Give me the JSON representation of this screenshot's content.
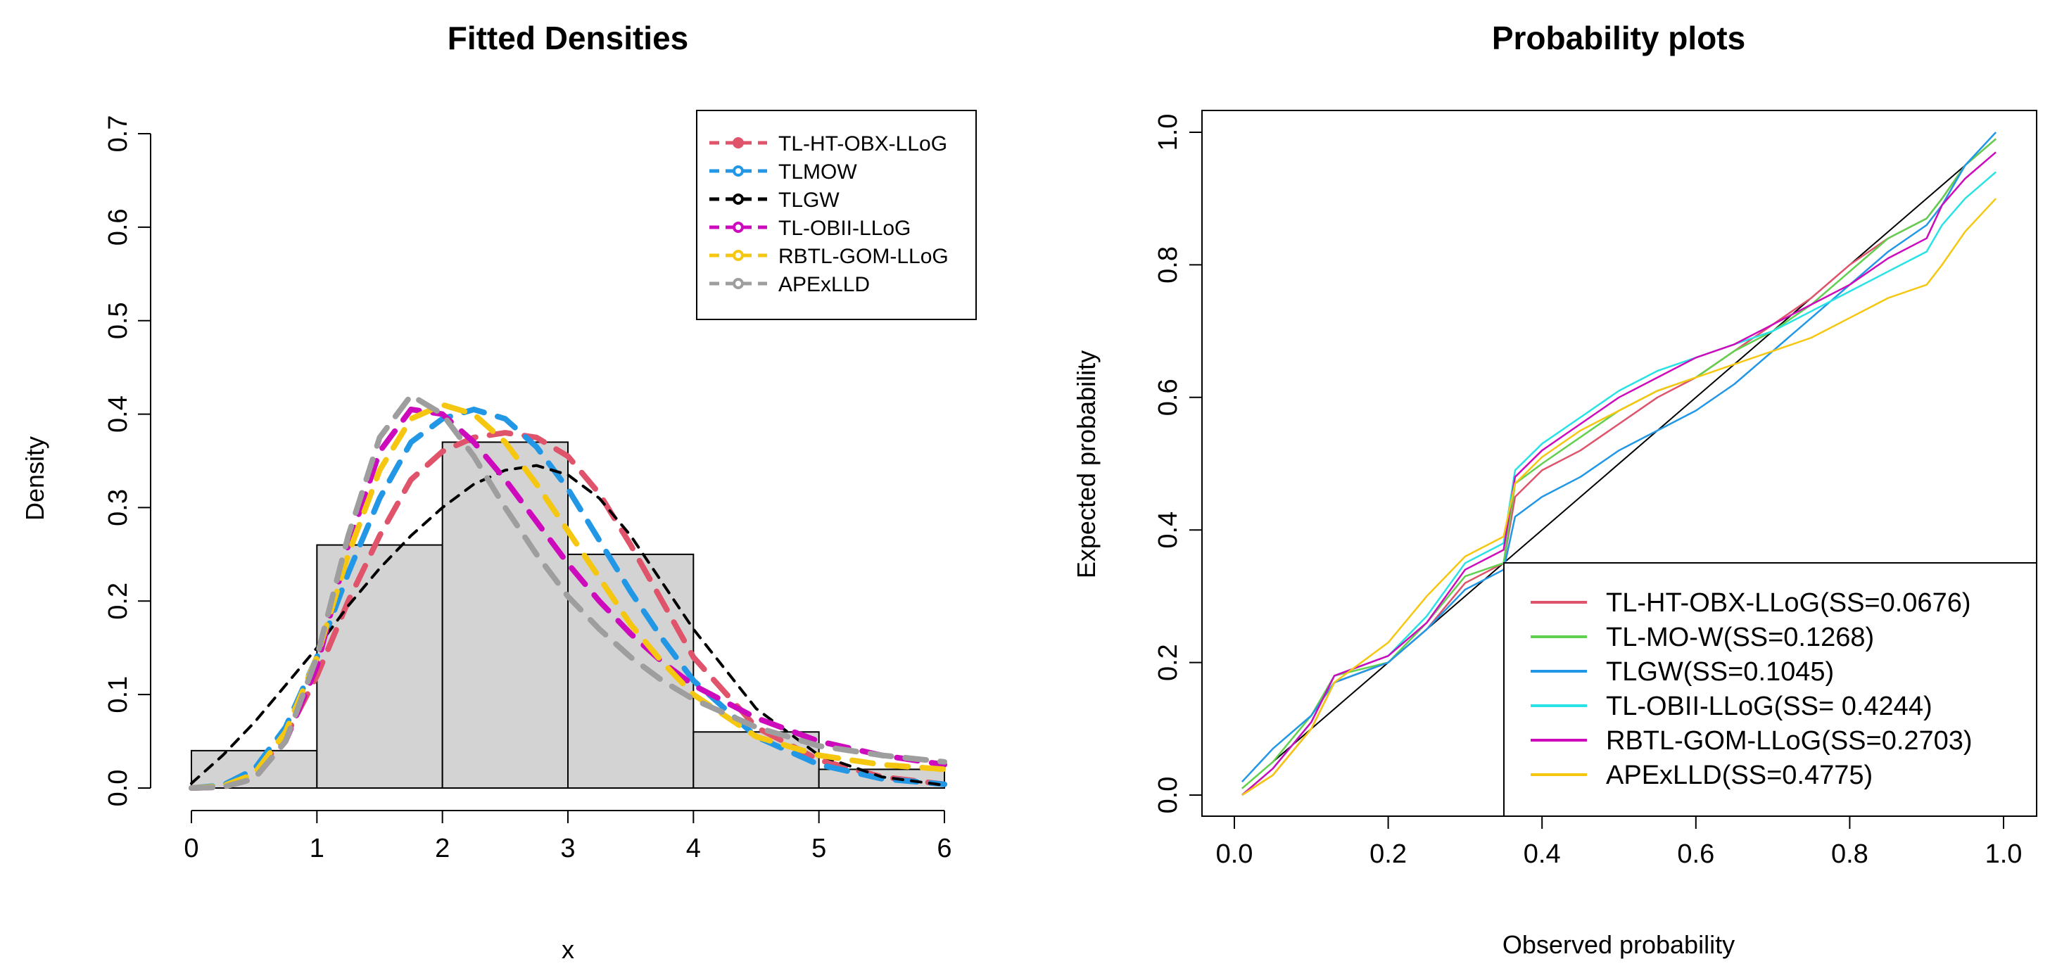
{
  "chart_data": [
    {
      "type": "histogram+line",
      "title": "Fitted Densities",
      "xlabel": "x",
      "ylabel": "Density",
      "xlim": [
        0,
        6
      ],
      "ylim": [
        0,
        0.7
      ],
      "xticks": [
        "0",
        "1",
        "2",
        "3",
        "4",
        "5",
        "6"
      ],
      "yticks": [
        "0.0",
        "0.1",
        "0.2",
        "0.3",
        "0.4",
        "0.5",
        "0.6",
        "0.7"
      ],
      "histogram": {
        "bins": [
          [
            0,
            1
          ],
          [
            1,
            2
          ],
          [
            2,
            3
          ],
          [
            3,
            4
          ],
          [
            4,
            5
          ],
          [
            5,
            6
          ]
        ],
        "values": [
          0.04,
          0.26,
          0.37,
          0.25,
          0.06,
          0.02
        ],
        "fill": "#d3d3d3"
      },
      "legend_position": "top-right",
      "series": [
        {
          "name": "TL-HT-OBX-LLoG",
          "color": "#df536b",
          "x": [
            0,
            0.25,
            0.5,
            0.75,
            1,
            1.25,
            1.5,
            1.75,
            2,
            2.25,
            2.5,
            2.75,
            3,
            3.25,
            3.5,
            3.75,
            4,
            4.5,
            5,
            5.5,
            6
          ],
          "y": [
            0,
            0.002,
            0.015,
            0.055,
            0.12,
            0.2,
            0.27,
            0.33,
            0.36,
            0.375,
            0.38,
            0.375,
            0.355,
            0.315,
            0.26,
            0.2,
            0.14,
            0.065,
            0.03,
            0.012,
            0.004
          ]
        },
        {
          "name": "TLMOW",
          "color": "#2297e6",
          "x": [
            0,
            0.25,
            0.5,
            0.75,
            1,
            1.25,
            1.5,
            1.75,
            2,
            2.25,
            2.5,
            2.75,
            3,
            3.25,
            3.5,
            3.75,
            4,
            4.5,
            5,
            5.5,
            6
          ],
          "y": [
            0,
            0.003,
            0.02,
            0.065,
            0.14,
            0.23,
            0.31,
            0.37,
            0.395,
            0.405,
            0.395,
            0.365,
            0.32,
            0.265,
            0.21,
            0.16,
            0.115,
            0.055,
            0.025,
            0.01,
            0.004
          ]
        },
        {
          "name": "TLGW",
          "color": "#000000",
          "x": [
            0,
            0.25,
            0.5,
            0.75,
            1,
            1.25,
            1.5,
            1.75,
            2,
            2.25,
            2.5,
            2.75,
            3,
            3.25,
            3.5,
            3.75,
            4,
            4.5,
            5,
            5.5,
            6
          ],
          "y": [
            0.005,
            0.035,
            0.07,
            0.11,
            0.15,
            0.195,
            0.235,
            0.27,
            0.3,
            0.325,
            0.34,
            0.345,
            0.335,
            0.31,
            0.27,
            0.22,
            0.17,
            0.085,
            0.035,
            0.012,
            0.003
          ]
        },
        {
          "name": "TL-OBII-LLoG",
          "color": "#cd0bbc",
          "x": [
            0,
            0.25,
            0.5,
            0.75,
            1,
            1.25,
            1.5,
            1.75,
            2,
            2.25,
            2.5,
            2.75,
            3,
            3.25,
            3.5,
            3.75,
            4,
            4.5,
            5,
            5.5,
            6
          ],
          "y": [
            0,
            0.001,
            0.01,
            0.05,
            0.13,
            0.26,
            0.36,
            0.405,
            0.4,
            0.37,
            0.33,
            0.285,
            0.24,
            0.2,
            0.165,
            0.135,
            0.11,
            0.075,
            0.05,
            0.035,
            0.025
          ]
        },
        {
          "name": "RBTL-GOM-LLoG",
          "color": "#f5c710",
          "x": [
            0,
            0.25,
            0.5,
            0.75,
            1,
            1.25,
            1.5,
            1.75,
            2,
            2.25,
            2.5,
            2.75,
            3,
            3.25,
            3.5,
            3.75,
            4,
            4.5,
            5,
            5.5,
            6
          ],
          "y": [
            0,
            0.002,
            0.015,
            0.06,
            0.14,
            0.25,
            0.34,
            0.395,
            0.41,
            0.4,
            0.37,
            0.325,
            0.275,
            0.225,
            0.175,
            0.135,
            0.1,
            0.055,
            0.035,
            0.025,
            0.02
          ]
        },
        {
          "name": "APExLLD",
          "color": "#9e9e9e",
          "x": [
            0,
            0.25,
            0.5,
            0.75,
            1,
            1.25,
            1.5,
            1.75,
            2,
            2.25,
            2.5,
            2.75,
            3,
            3.25,
            3.5,
            3.75,
            4,
            4.5,
            5,
            5.5,
            6
          ],
          "y": [
            0,
            0.001,
            0.01,
            0.05,
            0.14,
            0.27,
            0.375,
            0.42,
            0.4,
            0.355,
            0.3,
            0.25,
            0.205,
            0.17,
            0.14,
            0.115,
            0.095,
            0.065,
            0.045,
            0.035,
            0.028
          ]
        }
      ]
    },
    {
      "type": "line",
      "title": "Probability plots",
      "xlabel": "Observed probability",
      "ylabel": "Expected probability",
      "xlim": [
        0,
        1
      ],
      "ylim": [
        0,
        1
      ],
      "xticks": [
        "0.0",
        "0.2",
        "0.4",
        "0.6",
        "0.8",
        "1.0"
      ],
      "yticks": [
        "0.0",
        "0.2",
        "0.4",
        "0.6",
        "0.8",
        "1.0"
      ],
      "legend_position": "bottom-right",
      "reference_line": {
        "x": [
          0.01,
          0.99
        ],
        "y": [
          0.01,
          0.99
        ],
        "color": "#000000"
      },
      "series": [
        {
          "name": "TL-HT-OBX-LLoG(SS=0.0676)",
          "color": "#df536b",
          "x": [
            0.01,
            0.05,
            0.1,
            0.13,
            0.2,
            0.25,
            0.3,
            0.35,
            0.365,
            0.4,
            0.45,
            0.5,
            0.55,
            0.6,
            0.65,
            0.7,
            0.75,
            0.8,
            0.85,
            0.9,
            0.92,
            0.95,
            0.99
          ],
          "y": [
            0,
            0.03,
            0.1,
            0.17,
            0.2,
            0.25,
            0.32,
            0.35,
            0.45,
            0.49,
            0.52,
            0.56,
            0.6,
            0.63,
            0.67,
            0.71,
            0.75,
            0.8,
            0.84,
            0.87,
            0.9,
            0.95,
            0.99
          ]
        },
        {
          "name": "TL-MO-W(SS=0.1268)",
          "color": "#61d04f",
          "x": [
            0.01,
            0.05,
            0.1,
            0.13,
            0.2,
            0.25,
            0.3,
            0.35,
            0.365,
            0.4,
            0.45,
            0.5,
            0.55,
            0.6,
            0.65,
            0.7,
            0.75,
            0.8,
            0.85,
            0.9,
            0.92,
            0.95,
            0.99
          ],
          "y": [
            0.01,
            0.05,
            0.12,
            0.18,
            0.2,
            0.26,
            0.33,
            0.35,
            0.47,
            0.5,
            0.54,
            0.58,
            0.61,
            0.63,
            0.67,
            0.7,
            0.74,
            0.79,
            0.84,
            0.87,
            0.9,
            0.95,
            0.99
          ]
        },
        {
          "name": "TLGW(SS=0.1045)",
          "color": "#2297e6",
          "x": [
            0.01,
            0.05,
            0.1,
            0.13,
            0.2,
            0.25,
            0.3,
            0.35,
            0.365,
            0.4,
            0.45,
            0.5,
            0.55,
            0.6,
            0.65,
            0.7,
            0.75,
            0.8,
            0.85,
            0.9,
            0.92,
            0.95,
            0.99
          ],
          "y": [
            0.02,
            0.07,
            0.12,
            0.17,
            0.2,
            0.25,
            0.31,
            0.34,
            0.42,
            0.45,
            0.48,
            0.52,
            0.55,
            0.58,
            0.62,
            0.67,
            0.72,
            0.77,
            0.82,
            0.86,
            0.89,
            0.95,
            1.0
          ]
        },
        {
          "name": "TL-OBII-LLoG(SS= 0.4244)",
          "color": "#28e2e5",
          "x": [
            0.01,
            0.05,
            0.1,
            0.13,
            0.2,
            0.25,
            0.3,
            0.35,
            0.365,
            0.4,
            0.45,
            0.5,
            0.55,
            0.6,
            0.65,
            0.7,
            0.75,
            0.8,
            0.85,
            0.9,
            0.92,
            0.95,
            0.99
          ],
          "y": [
            0,
            0.04,
            0.11,
            0.18,
            0.21,
            0.27,
            0.35,
            0.38,
            0.49,
            0.53,
            0.57,
            0.61,
            0.64,
            0.66,
            0.68,
            0.7,
            0.73,
            0.76,
            0.79,
            0.82,
            0.86,
            0.9,
            0.94
          ]
        },
        {
          "name": "RBTL-GOM-LLoG(SS=0.2703)",
          "color": "#cd0bbc",
          "x": [
            0.01,
            0.05,
            0.1,
            0.13,
            0.2,
            0.25,
            0.3,
            0.35,
            0.365,
            0.4,
            0.45,
            0.5,
            0.55,
            0.6,
            0.65,
            0.7,
            0.75,
            0.8,
            0.85,
            0.9,
            0.92,
            0.95,
            0.99
          ],
          "y": [
            0,
            0.04,
            0.11,
            0.18,
            0.21,
            0.26,
            0.34,
            0.37,
            0.48,
            0.52,
            0.56,
            0.6,
            0.63,
            0.66,
            0.68,
            0.71,
            0.74,
            0.77,
            0.81,
            0.84,
            0.89,
            0.93,
            0.97
          ]
        },
        {
          "name": "APExLLD(SS=0.4775)",
          "color": "#f5c710",
          "x": [
            0.01,
            0.05,
            0.1,
            0.13,
            0.2,
            0.25,
            0.3,
            0.35,
            0.365,
            0.4,
            0.45,
            0.5,
            0.55,
            0.6,
            0.65,
            0.7,
            0.75,
            0.8,
            0.85,
            0.9,
            0.92,
            0.95,
            0.99
          ],
          "y": [
            0,
            0.03,
            0.1,
            0.17,
            0.23,
            0.3,
            0.36,
            0.39,
            0.47,
            0.51,
            0.55,
            0.58,
            0.61,
            0.63,
            0.65,
            0.67,
            0.69,
            0.72,
            0.75,
            0.77,
            0.8,
            0.85,
            0.9
          ]
        }
      ]
    }
  ]
}
